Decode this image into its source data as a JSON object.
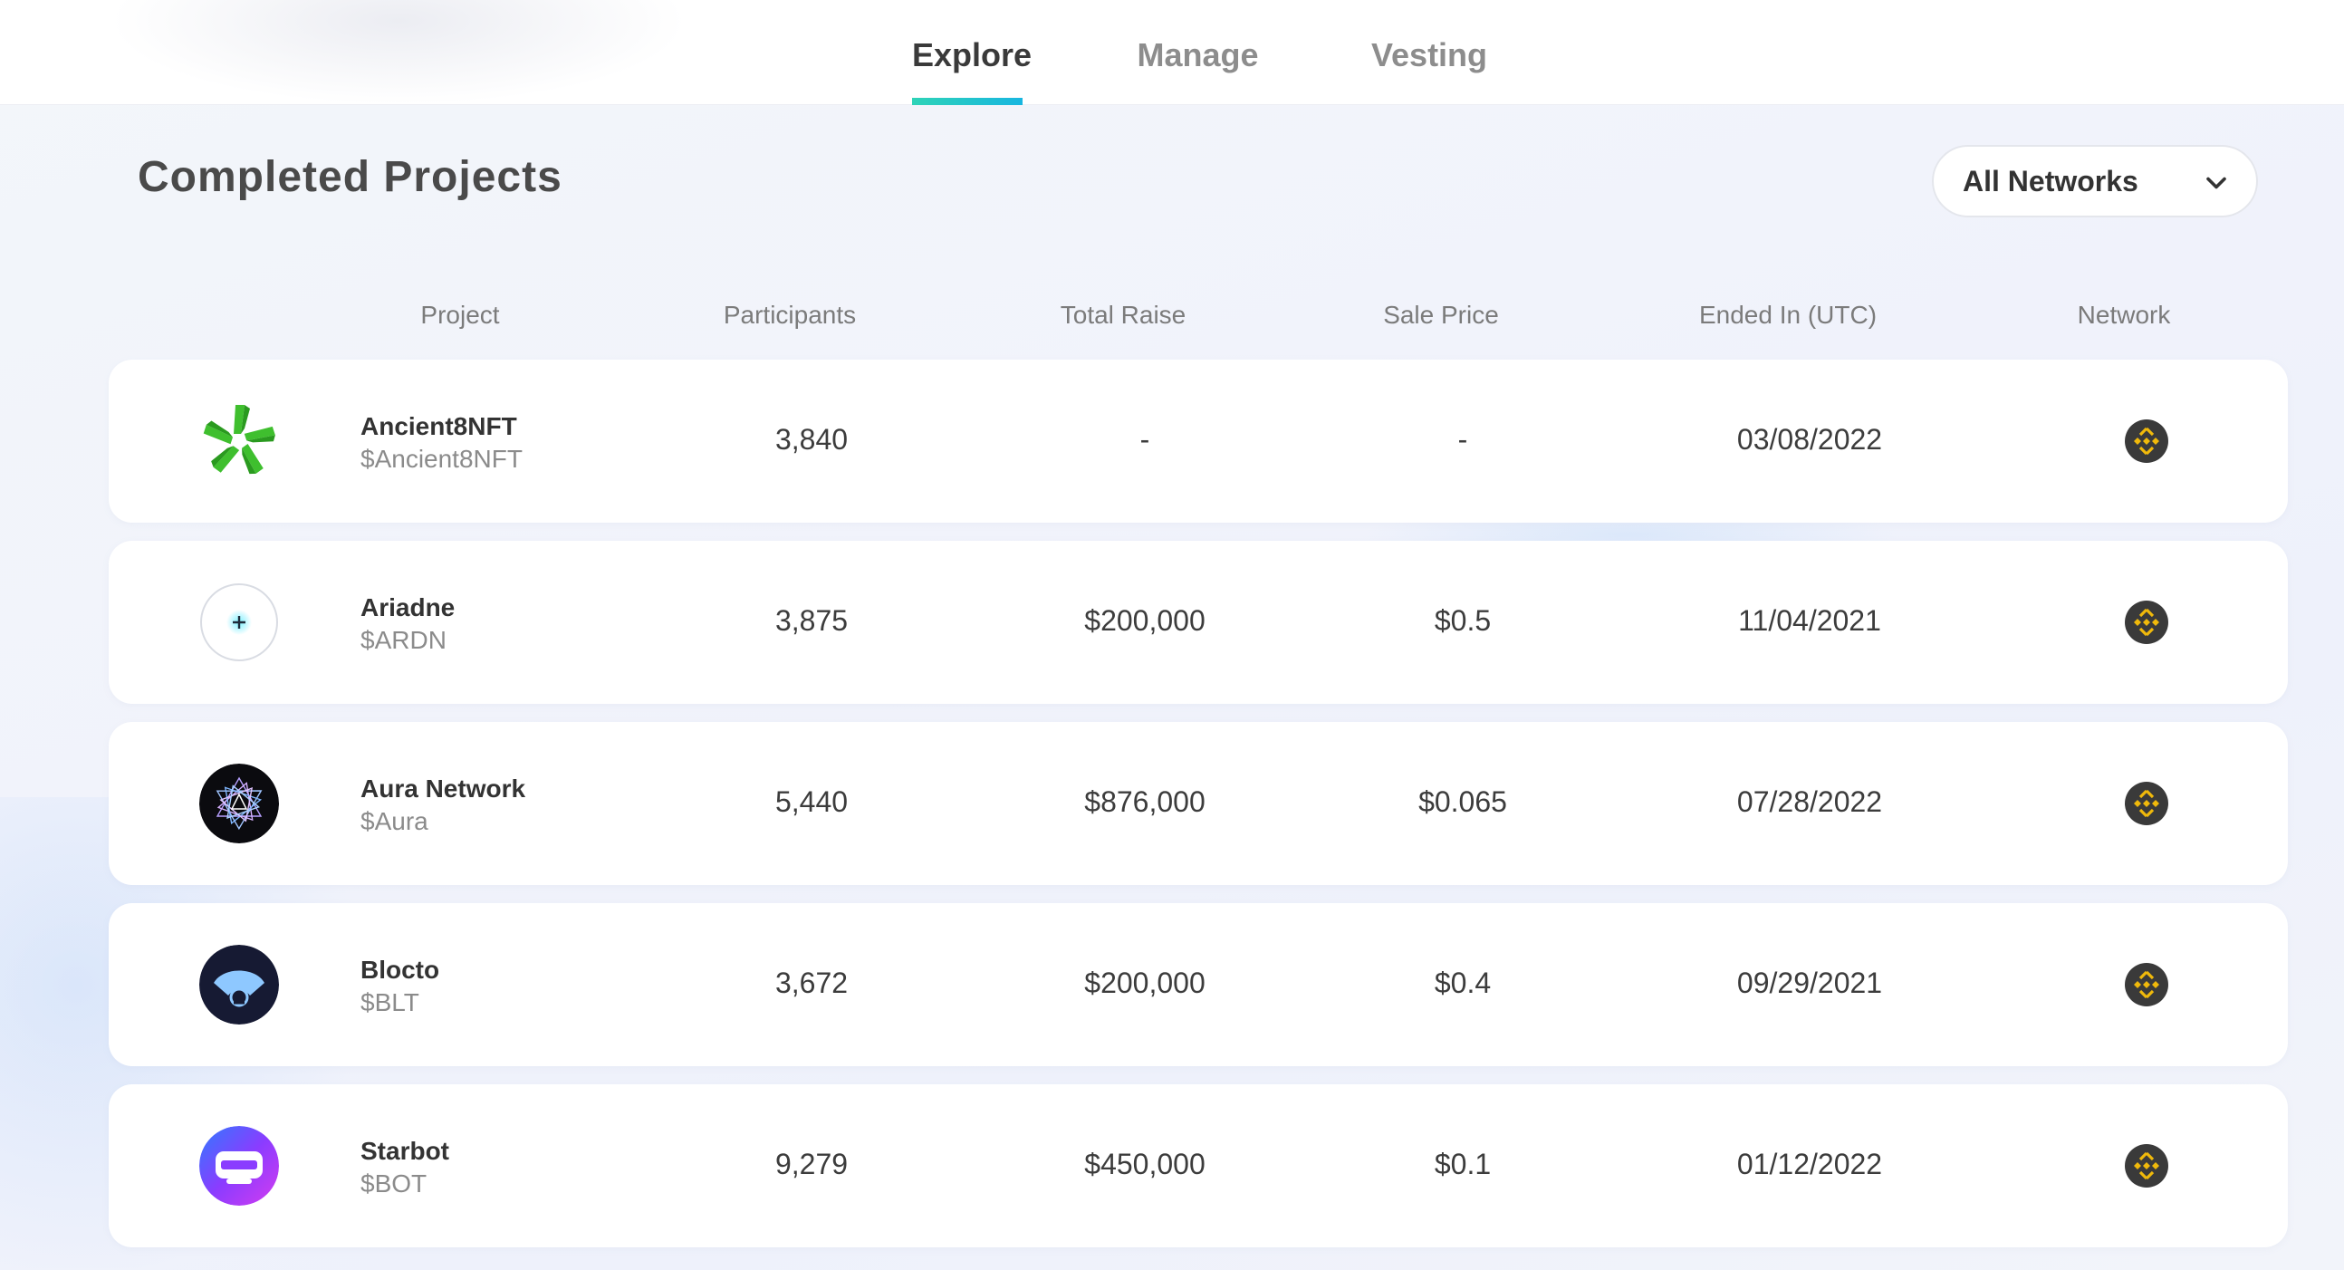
{
  "tabs": [
    {
      "label": "Explore",
      "active": true
    },
    {
      "label": "Manage",
      "active": false
    },
    {
      "label": "Vesting",
      "active": false
    }
  ],
  "page_title": "Completed Projects",
  "network_filter": {
    "selected": "All Networks"
  },
  "columns": [
    "Project",
    "Participants",
    "Total Raise",
    "Sale Price",
    "Ended In (UTC)",
    "Network"
  ],
  "rows": [
    {
      "name": "Ancient8NFT",
      "token": "$Ancient8NFT",
      "participants": "3,840",
      "total_raise": "-",
      "sale_price": "-",
      "ended": "03/08/2022",
      "network_icon": "bnb-chain-icon",
      "logo": "ancient8-logo"
    },
    {
      "name": "Ariadne",
      "token": "$ARDN",
      "participants": "3,875",
      "total_raise": "$200,000",
      "sale_price": "$0.5",
      "ended": "11/04/2021",
      "network_icon": "bnb-chain-icon",
      "logo": "ariadne-logo"
    },
    {
      "name": "Aura Network",
      "token": "$Aura",
      "participants": "5,440",
      "total_raise": "$876,000",
      "sale_price": "$0.065",
      "ended": "07/28/2022",
      "network_icon": "bnb-chain-icon",
      "logo": "aura-logo"
    },
    {
      "name": "Blocto",
      "token": "$BLT",
      "participants": "3,672",
      "total_raise": "$200,000",
      "sale_price": "$0.4",
      "ended": "09/29/2021",
      "network_icon": "bnb-chain-icon",
      "logo": "blocto-logo"
    },
    {
      "name": "Starbot",
      "token": "$BOT",
      "participants": "9,279",
      "total_raise": "$450,000",
      "sale_price": "$0.1",
      "ended": "01/12/2022",
      "network_icon": "bnb-chain-icon",
      "logo": "starbot-logo"
    }
  ],
  "colors": {
    "accent_gradient_start": "#2ed3b7",
    "accent_gradient_end": "#18b6e0",
    "bnb_yellow": "#f0b90b",
    "bnb_bg": "#3a3a3a"
  }
}
